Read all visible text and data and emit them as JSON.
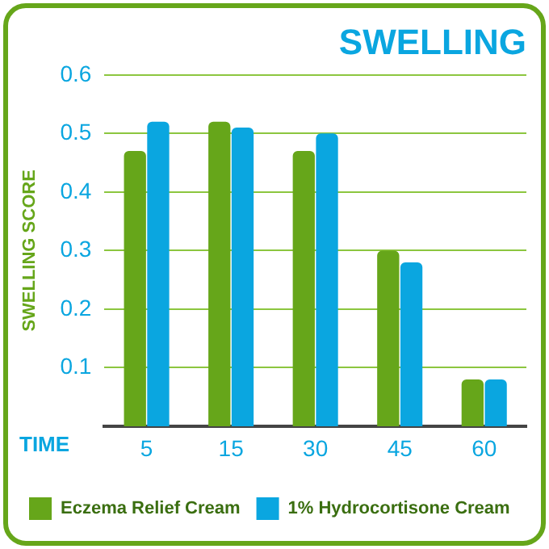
{
  "chart_data": {
    "type": "bar",
    "title": "SWELLING",
    "xlabel": "TIME",
    "ylabel": "SWELLING SCORE",
    "categories": [
      "5",
      "15",
      "30",
      "45",
      "60"
    ],
    "series": [
      {
        "name": "Eczema Relief Cream",
        "color": "#66a61a",
        "values": [
          0.47,
          0.52,
          0.47,
          0.3,
          0.08
        ]
      },
      {
        "name": "1% Hydrocortisone Cream",
        "color": "#0aa6e0",
        "values": [
          0.52,
          0.51,
          0.5,
          0.28,
          0.08
        ]
      }
    ],
    "ylim": [
      0,
      0.6
    ],
    "yticks": [
      0.1,
      0.2,
      0.3,
      0.4,
      0.5,
      0.6
    ],
    "grid": "y",
    "legend": "bottom"
  }
}
